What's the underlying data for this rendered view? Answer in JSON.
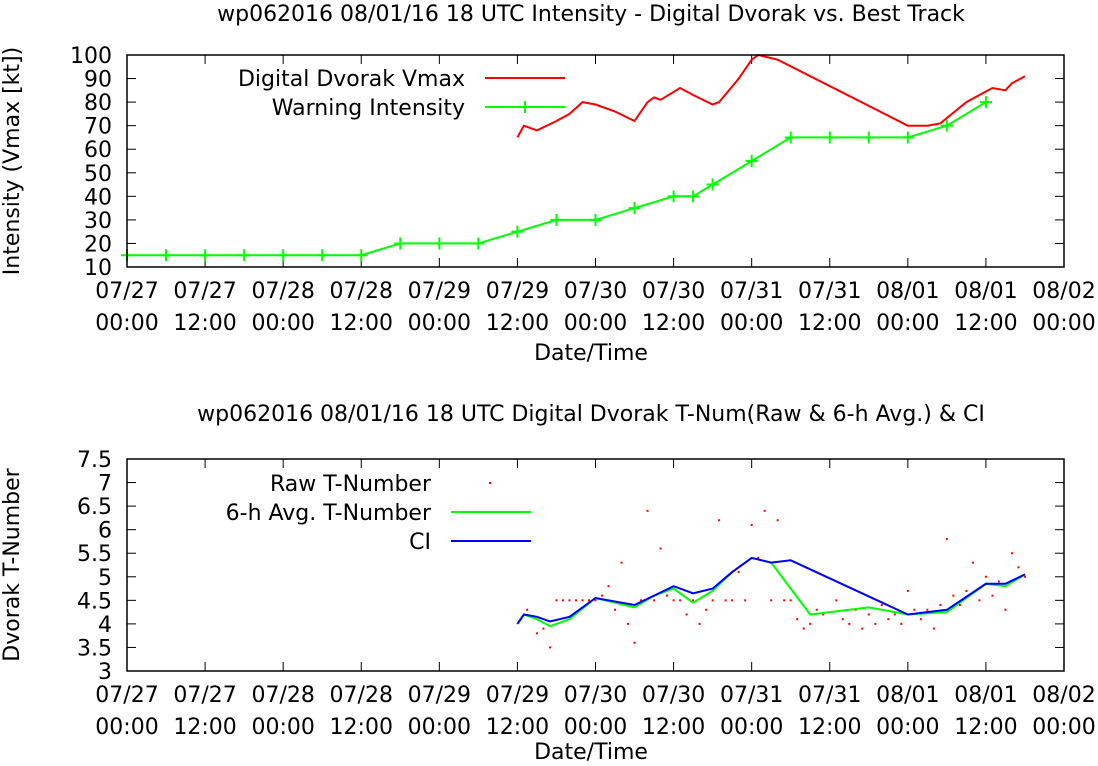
{
  "chart_data": [
    {
      "type": "line",
      "title": "wp062016 08/01/16  18 UTC Intensity - Digital Dvorak vs. Best Track",
      "xlabel": "Date/Time",
      "ylabel": "Intensity (Vmax [kt])",
      "xlim": [
        "2016-07-27 00:00",
        "2016-08-02 00:00"
      ],
      "ylim": [
        10,
        100
      ],
      "yticks": [
        "10",
        "20",
        "30",
        "40",
        "50",
        "60",
        "70",
        "80",
        "90",
        "100"
      ],
      "xticks": [
        {
          "date": "07/27",
          "time": "00:00"
        },
        {
          "date": "07/27",
          "time": "12:00"
        },
        {
          "date": "07/28",
          "time": "00:00"
        },
        {
          "date": "07/28",
          "time": "12:00"
        },
        {
          "date": "07/29",
          "time": "00:00"
        },
        {
          "date": "07/29",
          "time": "12:00"
        },
        {
          "date": "07/30",
          "time": "00:00"
        },
        {
          "date": "07/30",
          "time": "12:00"
        },
        {
          "date": "07/31",
          "time": "00:00"
        },
        {
          "date": "07/31",
          "time": "12:00"
        },
        {
          "date": "08/01",
          "time": "00:00"
        },
        {
          "date": "08/01",
          "time": "12:00"
        },
        {
          "date": "08/02",
          "time": "00:00"
        }
      ],
      "grid": false,
      "legend": "top-left",
      "series": [
        {
          "name": "Digital Dvorak Vmax",
          "color": "#ff0000",
          "x": [
            "2016-07-29 12:00",
            "2016-07-29 13:00",
            "2016-07-29 15:00",
            "2016-07-29 18:00",
            "2016-07-29 20:00",
            "2016-07-29 22:00",
            "2016-07-30 00:00",
            "2016-07-30 03:00",
            "2016-07-30 06:00",
            "2016-07-30 08:00",
            "2016-07-30 09:00",
            "2016-07-30 10:00",
            "2016-07-30 13:00",
            "2016-07-30 15:00",
            "2016-07-30 18:00",
            "2016-07-30 19:00",
            "2016-07-30 22:00",
            "2016-07-31 00:00",
            "2016-07-31 01:00",
            "2016-07-31 04:00",
            "2016-08-01 00:00",
            "2016-08-01 03:00",
            "2016-08-01 05:00",
            "2016-08-01 09:00",
            "2016-08-01 11:00",
            "2016-08-01 13:00",
            "2016-08-01 15:00",
            "2016-08-01 16:00",
            "2016-08-01 18:00"
          ],
          "y": [
            65,
            70,
            68,
            72,
            75,
            80,
            79,
            76,
            72,
            80,
            82,
            81,
            86,
            83,
            79,
            80,
            90,
            98,
            100,
            98,
            70,
            70,
            71,
            80,
            83,
            86,
            85,
            88,
            91
          ]
        },
        {
          "name": "Warning Intensity",
          "color": "#00ff00",
          "x": [
            "2016-07-27 00:00",
            "2016-07-27 06:00",
            "2016-07-27 12:00",
            "2016-07-27 18:00",
            "2016-07-28 00:00",
            "2016-07-28 06:00",
            "2016-07-28 12:00",
            "2016-07-28 18:00",
            "2016-07-29 00:00",
            "2016-07-29 06:00",
            "2016-07-29 12:00",
            "2016-07-29 18:00",
            "2016-07-30 00:00",
            "2016-07-30 06:00",
            "2016-07-30 12:00",
            "2016-07-30 15:00",
            "2016-07-30 18:00",
            "2016-07-31 00:00",
            "2016-07-31 06:00",
            "2016-07-31 12:00",
            "2016-07-31 18:00",
            "2016-08-01 00:00",
            "2016-08-01 06:00",
            "2016-08-01 12:00"
          ],
          "y": [
            15,
            15,
            15,
            15,
            15,
            15,
            15,
            20,
            20,
            20,
            25,
            30,
            30,
            35,
            40,
            40,
            45,
            55,
            65,
            65,
            65,
            65,
            70,
            80
          ]
        }
      ]
    },
    {
      "type": "scatter",
      "title": "wp062016 08/01/16  18 UTC Digital Dvorak T-Num(Raw & 6-h Avg.) & CI",
      "xlabel": "Date/Time",
      "ylabel": "Dvorak T-Number",
      "xlim": [
        "2016-07-27 00:00",
        "2016-08-02 00:00"
      ],
      "ylim": [
        3,
        7.5
      ],
      "yticks": [
        "3",
        "3.5",
        "4",
        "4.5",
        "5",
        "5.5",
        "6",
        "6.5",
        "7",
        "7.5"
      ],
      "xticks": [
        {
          "date": "07/27",
          "time": "00:00"
        },
        {
          "date": "07/27",
          "time": "12:00"
        },
        {
          "date": "07/28",
          "time": "00:00"
        },
        {
          "date": "07/28",
          "time": "12:00"
        },
        {
          "date": "07/29",
          "time": "00:00"
        },
        {
          "date": "07/29",
          "time": "12:00"
        },
        {
          "date": "07/30",
          "time": "00:00"
        },
        {
          "date": "07/30",
          "time": "12:00"
        },
        {
          "date": "07/31",
          "time": "00:00"
        },
        {
          "date": "07/31",
          "time": "12:00"
        },
        {
          "date": "08/01",
          "time": "00:00"
        },
        {
          "date": "08/01",
          "time": "12:00"
        },
        {
          "date": "08/02",
          "time": "00:00"
        }
      ],
      "grid": false,
      "legend": "top-left",
      "series": [
        {
          "name": "Raw T-Number",
          "color": "#ff0000",
          "points": [
            [
              "2016-07-29 12:30",
              4.1
            ],
            [
              "2016-07-29 13:30",
              4.3
            ],
            [
              "2016-07-29 15:00",
              3.8
            ],
            [
              "2016-07-29 16:00",
              3.9
            ],
            [
              "2016-07-29 17:00",
              3.5
            ],
            [
              "2016-07-29 18:00",
              4.5
            ],
            [
              "2016-07-29 19:00",
              4.5
            ],
            [
              "2016-07-29 20:00",
              4.5
            ],
            [
              "2016-07-29 21:00",
              4.5
            ],
            [
              "2016-07-29 22:00",
              4.5
            ],
            [
              "2016-07-29 23:00",
              4.5
            ],
            [
              "2016-07-30 00:00",
              4.5
            ],
            [
              "2016-07-30 01:00",
              4.6
            ],
            [
              "2016-07-30 02:00",
              4.8
            ],
            [
              "2016-07-30 03:00",
              4.3
            ],
            [
              "2016-07-30 04:00",
              5.3
            ],
            [
              "2016-07-30 05:00",
              4.0
            ],
            [
              "2016-07-30 06:00",
              3.6
            ],
            [
              "2016-07-30 07:00",
              4.5
            ],
            [
              "2016-07-30 08:00",
              6.4
            ],
            [
              "2016-07-30 09:00",
              4.5
            ],
            [
              "2016-07-30 10:00",
              5.6
            ],
            [
              "2016-07-30 11:00",
              4.6
            ],
            [
              "2016-07-30 12:00",
              4.5
            ],
            [
              "2016-07-30 13:00",
              4.5
            ],
            [
              "2016-07-30 14:00",
              4.2
            ],
            [
              "2016-07-30 15:00",
              4.5
            ],
            [
              "2016-07-30 16:00",
              4.0
            ],
            [
              "2016-07-30 17:00",
              4.3
            ],
            [
              "2016-07-30 18:00",
              4.5
            ],
            [
              "2016-07-30 19:00",
              6.2
            ],
            [
              "2016-07-30 20:00",
              4.5
            ],
            [
              "2016-07-30 21:00",
              4.5
            ],
            [
              "2016-07-30 22:00",
              5.1
            ],
            [
              "2016-07-30 23:00",
              4.5
            ],
            [
              "2016-07-31 00:00",
              6.1
            ],
            [
              "2016-07-31 01:00",
              5.4
            ],
            [
              "2016-07-31 02:00",
              6.4
            ],
            [
              "2016-07-31 03:00",
              4.5
            ],
            [
              "2016-07-31 04:00",
              6.2
            ],
            [
              "2016-07-31 05:00",
              4.5
            ],
            [
              "2016-07-31 06:00",
              4.5
            ],
            [
              "2016-07-31 07:00",
              4.1
            ],
            [
              "2016-07-31 08:00",
              3.9
            ],
            [
              "2016-07-31 09:00",
              4.0
            ],
            [
              "2016-07-31 10:00",
              4.3
            ],
            [
              "2016-07-31 11:00",
              4.2
            ],
            [
              "2016-07-31 13:00",
              4.5
            ],
            [
              "2016-07-31 14:00",
              4.1
            ],
            [
              "2016-07-31 15:00",
              4.0
            ],
            [
              "2016-07-31 16:00",
              4.3
            ],
            [
              "2016-07-31 17:00",
              3.9
            ],
            [
              "2016-07-31 18:00",
              4.2
            ],
            [
              "2016-07-31 19:00",
              4.0
            ],
            [
              "2016-07-31 20:00",
              4.4
            ],
            [
              "2016-07-31 21:00",
              4.1
            ],
            [
              "2016-07-31 22:00",
              4.2
            ],
            [
              "2016-07-31 23:00",
              4.0
            ],
            [
              "2016-08-01 00:00",
              4.7
            ],
            [
              "2016-08-01 01:00",
              4.3
            ],
            [
              "2016-08-01 02:00",
              4.1
            ],
            [
              "2016-08-01 03:00",
              4.3
            ],
            [
              "2016-08-01 04:00",
              3.9
            ],
            [
              "2016-08-01 05:00",
              4.4
            ],
            [
              "2016-08-01 06:00",
              5.8
            ],
            [
              "2016-08-01 07:00",
              4.6
            ],
            [
              "2016-08-01 08:00",
              4.4
            ],
            [
              "2016-08-01 09:00",
              4.7
            ],
            [
              "2016-08-01 10:00",
              5.3
            ],
            [
              "2016-08-01 11:00",
              4.5
            ],
            [
              "2016-08-01 12:00",
              5.0
            ],
            [
              "2016-08-01 13:00",
              4.6
            ],
            [
              "2016-08-01 14:00",
              4.9
            ],
            [
              "2016-08-01 15:00",
              4.3
            ],
            [
              "2016-08-01 16:00",
              5.5
            ],
            [
              "2016-08-01 17:00",
              5.2
            ],
            [
              "2016-08-01 18:00",
              5.0
            ]
          ]
        },
        {
          "name": "6-h Avg. T-Number",
          "color": "#00ff00",
          "x": [
            "2016-07-29 12:00",
            "2016-07-29 13:00",
            "2016-07-29 15:00",
            "2016-07-29 17:00",
            "2016-07-29 20:00",
            "2016-07-30 00:00",
            "2016-07-30 06:00",
            "2016-07-30 09:00",
            "2016-07-30 12:00",
            "2016-07-30 15:00",
            "2016-07-30 18:00",
            "2016-07-30 21:00",
            "2016-07-31 00:00",
            "2016-07-31 03:00",
            "2016-07-31 06:00",
            "2016-07-31 09:00",
            "2016-07-31 12:00",
            "2016-07-31 18:00",
            "2016-08-01 00:00",
            "2016-08-01 06:00",
            "2016-08-01 12:00",
            "2016-08-01 15:00",
            "2016-08-01 18:00"
          ],
          "y": [
            4.0,
            4.2,
            4.1,
            3.95,
            4.1,
            4.55,
            4.35,
            4.6,
            4.75,
            4.45,
            4.7,
            5.1,
            5.4,
            5.3,
            4.75,
            4.2,
            4.25,
            4.35,
            4.2,
            4.25,
            4.85,
            4.8,
            5.05
          ]
        },
        {
          "name": "CI",
          "color": "#0000ff",
          "x": [
            "2016-07-29 12:00",
            "2016-07-29 13:00",
            "2016-07-29 15:00",
            "2016-07-29 17:00",
            "2016-07-29 20:00",
            "2016-07-30 00:00",
            "2016-07-30 06:00",
            "2016-07-30 09:00",
            "2016-07-30 12:00",
            "2016-07-30 15:00",
            "2016-07-30 18:00",
            "2016-07-30 21:00",
            "2016-07-31 00:00",
            "2016-07-31 03:00",
            "2016-07-31 06:00",
            "2016-08-01 00:00",
            "2016-08-01 06:00",
            "2016-08-01 12:00",
            "2016-08-01 15:00",
            "2016-08-01 18:00"
          ],
          "y": [
            4.0,
            4.2,
            4.15,
            4.05,
            4.15,
            4.55,
            4.4,
            4.6,
            4.8,
            4.65,
            4.75,
            5.1,
            5.4,
            5.3,
            5.35,
            4.2,
            4.3,
            4.85,
            4.85,
            5.05
          ]
        }
      ]
    }
  ]
}
